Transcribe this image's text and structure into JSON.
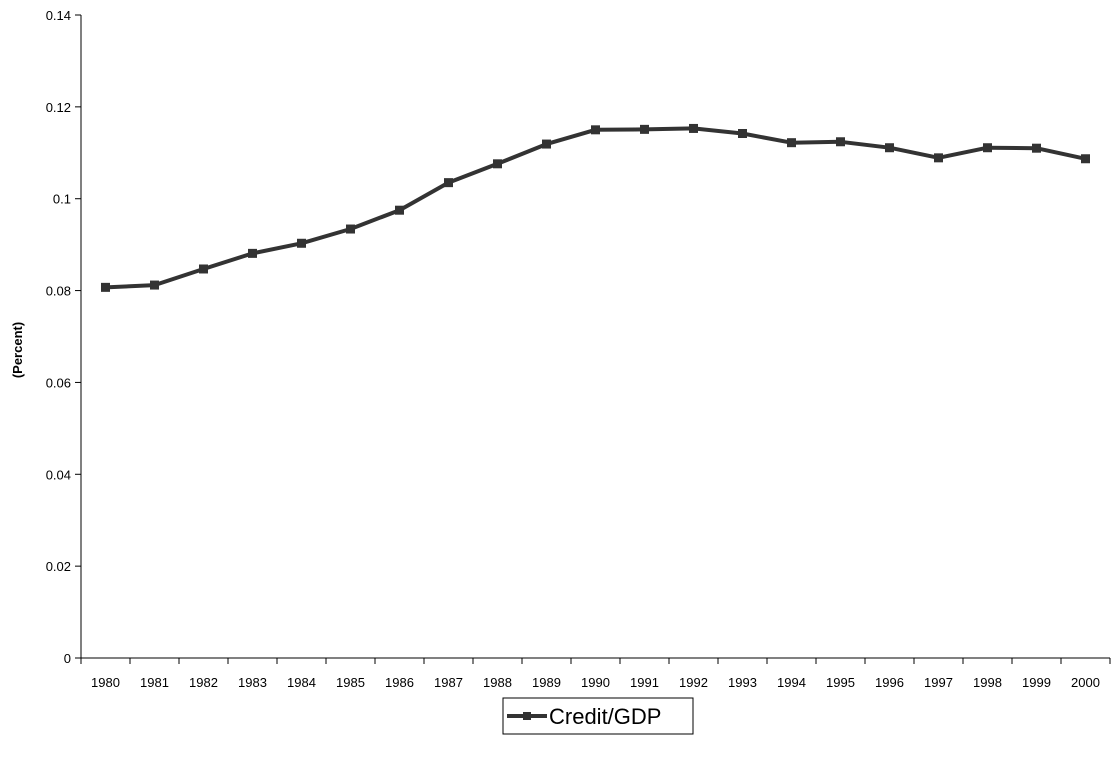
{
  "chart_data": {
    "type": "line",
    "title": "",
    "xlabel": "",
    "ylabel": "(Percent)",
    "categories": [
      "1980",
      "1981",
      "1982",
      "1983",
      "1984",
      "1985",
      "1986",
      "1987",
      "1988",
      "1989",
      "1990",
      "1991",
      "1992",
      "1993",
      "1994",
      "1995",
      "1996",
      "1997",
      "1998",
      "1999",
      "2000"
    ],
    "series": [
      {
        "name": "Credit/GDP",
        "values": [
          0.0807,
          0.0812,
          0.0847,
          0.0881,
          0.0903,
          0.0934,
          0.0975,
          0.1035,
          0.1076,
          0.1119,
          0.115,
          0.1151,
          0.1153,
          0.1142,
          0.1122,
          0.1124,
          0.1111,
          0.1089,
          0.1111,
          0.111,
          0.1087
        ]
      }
    ],
    "ylim": [
      0,
      0.14
    ],
    "yticks": [
      "0",
      "0.02",
      "0.04",
      "0.06",
      "0.08",
      "0.1",
      "0.12",
      "0.14"
    ],
    "ytick_values": [
      0,
      0.02,
      0.04,
      0.06,
      0.08,
      0.1,
      0.12,
      0.14
    ],
    "grid": false,
    "legend_position": "bottom-center",
    "colors": {
      "line": "#333333",
      "marker": "#333333",
      "axis": "#000000"
    },
    "marker": "square"
  }
}
